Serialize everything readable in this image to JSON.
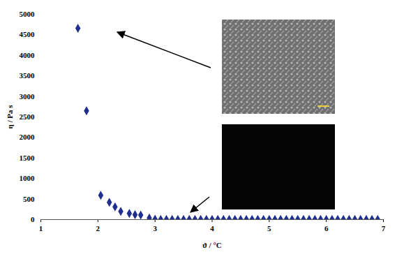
{
  "chart_data": {
    "type": "scatter",
    "x_label": "ϑ / °C",
    "y_label": "η / Pa s",
    "x": [
      1.65,
      1.8,
      2.05,
      2.2,
      2.3,
      2.4,
      2.55,
      2.65,
      2.75,
      2.9,
      3.0,
      3.1,
      3.2,
      3.3,
      3.4,
      3.5,
      3.6,
      3.7,
      3.8,
      3.9,
      4.0,
      4.1,
      4.2,
      4.3,
      4.4,
      4.5,
      4.6,
      4.7,
      4.8,
      4.9,
      5.0,
      5.1,
      5.2,
      5.3,
      5.4,
      5.5,
      5.6,
      5.7,
      5.8,
      5.9,
      6.0,
      6.1,
      6.2,
      6.3,
      6.4,
      6.5,
      6.6,
      6.7,
      6.8,
      6.9
    ],
    "values": [
      4660,
      2650,
      590,
      420,
      310,
      200,
      150,
      120,
      110,
      40,
      10,
      5,
      5,
      5,
      5,
      5,
      5,
      5,
      5,
      5,
      5,
      5,
      5,
      5,
      5,
      5,
      5,
      5,
      5,
      5,
      5,
      5,
      5,
      5,
      5,
      5,
      5,
      5,
      5,
      5,
      5,
      5,
      5,
      5,
      5,
      5,
      5,
      5,
      5,
      5
    ],
    "color": "#1f2f8f",
    "marker": "diamond",
    "xlim": [
      1,
      7
    ],
    "xticks": [
      1,
      2,
      3,
      4,
      5,
      6,
      7
    ],
    "ylim": [
      0,
      5000
    ],
    "yticks": [
      0,
      500,
      1000,
      1500,
      2000,
      2500,
      3000,
      3500,
      4000,
      4500,
      5000
    ],
    "grid": false
  }
}
